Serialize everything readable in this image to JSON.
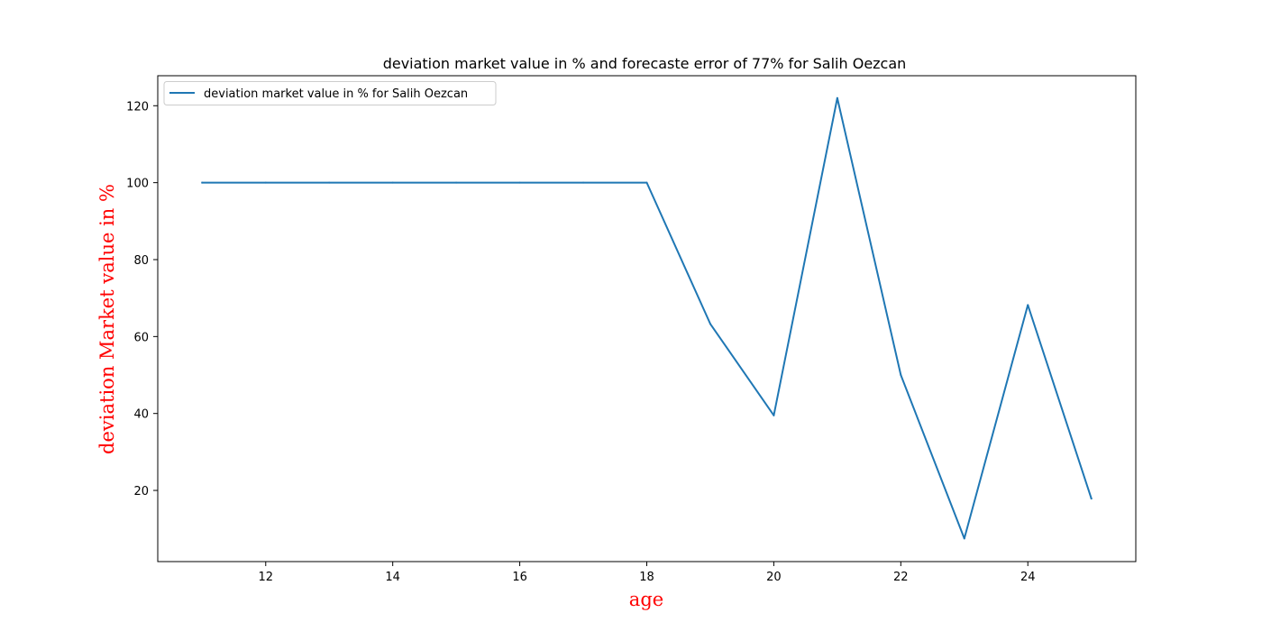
{
  "chart_data": {
    "type": "line",
    "title": "deviation market value in % and forecaste error of 77% for Salih Oezcan",
    "xlabel": "age",
    "ylabel": "deviation Market value in %",
    "xlim": [
      10.3,
      25.7
    ],
    "ylim": [
      1.5,
      127.8
    ],
    "xticks": [
      12,
      14,
      16,
      18,
      20,
      22,
      24
    ],
    "yticks": [
      20,
      40,
      60,
      80,
      100,
      120
    ],
    "grid": false,
    "legend_position": "upper-left",
    "label_color": "#ff0000",
    "series": [
      {
        "name": "deviation market value in % for Salih Oezcan",
        "color": "#1f77b4",
        "x": [
          11,
          12,
          13,
          14,
          15,
          16,
          17,
          18,
          19,
          20,
          21,
          22,
          23,
          24,
          25
        ],
        "y": [
          100,
          100,
          100,
          100,
          100,
          100,
          100,
          100,
          63.3,
          39.5,
          122,
          50,
          7.5,
          68.2,
          17.9
        ]
      }
    ]
  }
}
